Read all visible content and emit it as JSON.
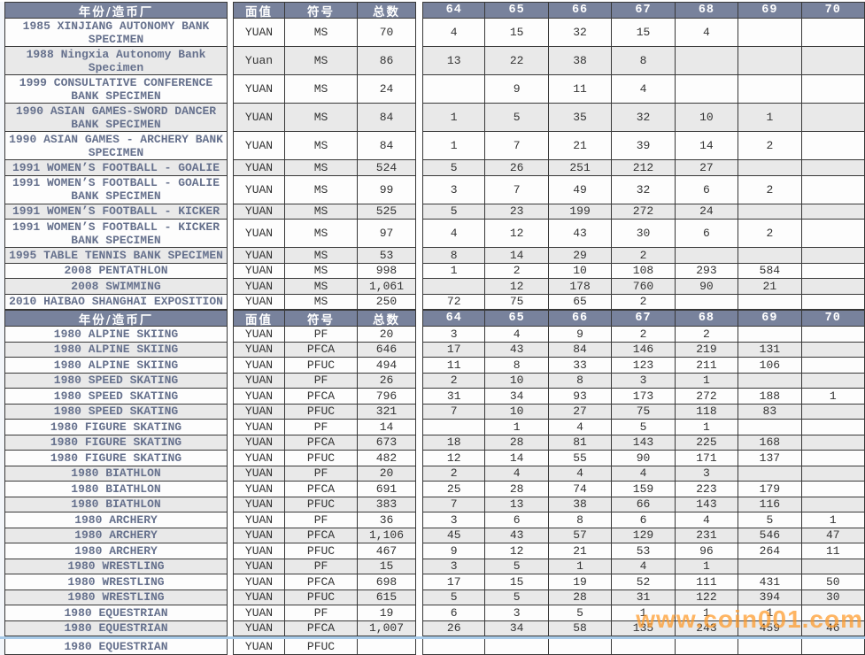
{
  "page": {
    "watermark": "www.coin001.com",
    "watermark_color": "#FF9A28",
    "header_bg": "#78829C",
    "stripe_color": "#E9E9E9",
    "name_text_color": "#66718D",
    "scrollbar_color": "#A8CBE9"
  },
  "columns": {
    "name": "年份/造币厂",
    "denomination": "面值",
    "symbol": "符号",
    "total": "总数",
    "grades": [
      "64",
      "65",
      "66",
      "67",
      "68",
      "69",
      "70"
    ]
  },
  "sections": [
    {
      "rows": [
        {
          "name": "1985 XINJIANG AUTONOMY BANK SPECIMEN",
          "denomination": "YUAN",
          "symbol": "MS",
          "total": "70",
          "grades": [
            "4",
            "15",
            "32",
            "15",
            "4",
            "",
            ""
          ]
        },
        {
          "name": "1988 Ningxia Autonomy Bank Specimen",
          "denomination": "Yuan",
          "symbol": "MS",
          "total": "86",
          "grades": [
            "13",
            "22",
            "38",
            "8",
            "",
            "",
            ""
          ]
        },
        {
          "name": "1999 CONSULTATIVE CONFERENCE BANK SPECIMEN",
          "denomination": "YUAN",
          "symbol": "MS",
          "total": "24",
          "grades": [
            "",
            "9",
            "11",
            "4",
            "",
            "",
            ""
          ]
        },
        {
          "name": "1990 ASIAN GAMES-SWORD DANCER BANK SPECIMEN",
          "denomination": "YUAN",
          "symbol": "MS",
          "total": "84",
          "grades": [
            "1",
            "5",
            "35",
            "32",
            "10",
            "1",
            ""
          ]
        },
        {
          "name": "1990 ASIAN GAMES - ARCHERY BANK SPECIMEN",
          "denomination": "YUAN",
          "symbol": "MS",
          "total": "84",
          "grades": [
            "1",
            "7",
            "21",
            "39",
            "14",
            "2",
            ""
          ]
        },
        {
          "name": "1991 WOMEN’S FOOTBALL - GOALIE",
          "denomination": "YUAN",
          "symbol": "MS",
          "total": "524",
          "grades": [
            "5",
            "26",
            "251",
            "212",
            "27",
            "",
            ""
          ]
        },
        {
          "name": "1991 WOMEN’S FOOTBALL - GOALIE BANK SPECIMEN",
          "denomination": "YUAN",
          "symbol": "MS",
          "total": "99",
          "grades": [
            "3",
            "7",
            "49",
            "32",
            "6",
            "2",
            ""
          ]
        },
        {
          "name": "1991 WOMEN’S FOOTBALL - KICKER",
          "denomination": "YUAN",
          "symbol": "MS",
          "total": "525",
          "grades": [
            "5",
            "23",
            "199",
            "272",
            "24",
            "",
            ""
          ]
        },
        {
          "name": "1991 WOMEN’S FOOTBALL - KICKER BANK SPECIMEN",
          "denomination": "YUAN",
          "symbol": "MS",
          "total": "97",
          "grades": [
            "4",
            "12",
            "43",
            "30",
            "6",
            "2",
            ""
          ]
        },
        {
          "name": "1995 TABLE TENNIS BANK SPECIMEN",
          "denomination": "YUAN",
          "symbol": "MS",
          "total": "53",
          "grades": [
            "8",
            "14",
            "29",
            "2",
            "",
            "",
            ""
          ]
        },
        {
          "name": "2008 PENTATHLON",
          "denomination": "YUAN",
          "symbol": "MS",
          "total": "998",
          "grades": [
            "1",
            "2",
            "10",
            "108",
            "293",
            "584",
            ""
          ]
        },
        {
          "name": "2008 SWIMMING",
          "denomination": "YUAN",
          "symbol": "MS",
          "total": "1,061",
          "grades": [
            "",
            "12",
            "178",
            "760",
            "90",
            "21",
            ""
          ]
        },
        {
          "name": "2010 HAIBAO SHANGHAI EXPOSITION",
          "denomination": "YUAN",
          "symbol": "MS",
          "total": "250",
          "grades": [
            "72",
            "75",
            "65",
            "2",
            "",
            "",
            ""
          ]
        }
      ]
    },
    {
      "rows": [
        {
          "name": "1980 ALPINE SKIING",
          "denomination": "YUAN",
          "symbol": "PF",
          "total": "20",
          "grades": [
            "3",
            "4",
            "9",
            "2",
            "2",
            "",
            ""
          ]
        },
        {
          "name": "1980 ALPINE SKIING",
          "denomination": "YUAN",
          "symbol": "PFCA",
          "total": "646",
          "grades": [
            "17",
            "43",
            "84",
            "146",
            "219",
            "131",
            ""
          ]
        },
        {
          "name": "1980 ALPINE SKIING",
          "denomination": "YUAN",
          "symbol": "PFUC",
          "total": "494",
          "grades": [
            "11",
            "8",
            "33",
            "123",
            "211",
            "106",
            ""
          ]
        },
        {
          "name": "1980 SPEED SKATING",
          "denomination": "YUAN",
          "symbol": "PF",
          "total": "26",
          "grades": [
            "2",
            "10",
            "8",
            "3",
            "1",
            "",
            ""
          ]
        },
        {
          "name": "1980 SPEED SKATING",
          "denomination": "YUAN",
          "symbol": "PFCA",
          "total": "796",
          "grades": [
            "31",
            "34",
            "93",
            "173",
            "272",
            "188",
            "1"
          ]
        },
        {
          "name": "1980 SPEED SKATING",
          "denomination": "YUAN",
          "symbol": "PFUC",
          "total": "321",
          "grades": [
            "7",
            "10",
            "27",
            "75",
            "118",
            "83",
            ""
          ]
        },
        {
          "name": "1980 FIGURE SKATING",
          "denomination": "YUAN",
          "symbol": "PF",
          "total": "14",
          "grades": [
            "",
            "1",
            "4",
            "5",
            "1",
            "",
            ""
          ]
        },
        {
          "name": "1980 FIGURE SKATING",
          "denomination": "YUAN",
          "symbol": "PFCA",
          "total": "673",
          "grades": [
            "18",
            "28",
            "81",
            "143",
            "225",
            "168",
            ""
          ]
        },
        {
          "name": "1980 FIGURE SKATING",
          "denomination": "YUAN",
          "symbol": "PFUC",
          "total": "482",
          "grades": [
            "12",
            "14",
            "55",
            "90",
            "171",
            "137",
            ""
          ]
        },
        {
          "name": "1980 BIATHLON",
          "denomination": "YUAN",
          "symbol": "PF",
          "total": "20",
          "grades": [
            "2",
            "4",
            "4",
            "4",
            "3",
            "",
            ""
          ]
        },
        {
          "name": "1980 BIATHLON",
          "denomination": "YUAN",
          "symbol": "PFCA",
          "total": "691",
          "grades": [
            "25",
            "28",
            "74",
            "159",
            "223",
            "179",
            ""
          ]
        },
        {
          "name": "1980 BIATHLON",
          "denomination": "YUAN",
          "symbol": "PFUC",
          "total": "383",
          "grades": [
            "7",
            "13",
            "38",
            "66",
            "143",
            "116",
            ""
          ]
        },
        {
          "name": "1980 ARCHERY",
          "denomination": "YUAN",
          "symbol": "PF",
          "total": "36",
          "grades": [
            "3",
            "6",
            "8",
            "6",
            "4",
            "5",
            "1"
          ]
        },
        {
          "name": "1980 ARCHERY",
          "denomination": "YUAN",
          "symbol": "PFCA",
          "total": "1,106",
          "grades": [
            "45",
            "43",
            "57",
            "129",
            "231",
            "546",
            "47"
          ]
        },
        {
          "name": "1980 ARCHERY",
          "denomination": "YUAN",
          "symbol": "PFUC",
          "total": "467",
          "grades": [
            "9",
            "12",
            "21",
            "53",
            "96",
            "264",
            "11"
          ]
        },
        {
          "name": "1980 WRESTLING",
          "denomination": "YUAN",
          "symbol": "PF",
          "total": "15",
          "grades": [
            "3",
            "5",
            "1",
            "4",
            "1",
            "",
            ""
          ]
        },
        {
          "name": "1980 WRESTLING",
          "denomination": "YUAN",
          "symbol": "PFCA",
          "total": "698",
          "grades": [
            "17",
            "15",
            "19",
            "52",
            "111",
            "431",
            "50"
          ]
        },
        {
          "name": "1980 WRESTLING",
          "denomination": "YUAN",
          "symbol": "PFUC",
          "total": "615",
          "grades": [
            "5",
            "5",
            "28",
            "31",
            "122",
            "394",
            "30"
          ]
        },
        {
          "name": "1980 EQUESTRIAN",
          "denomination": "YUAN",
          "symbol": "PF",
          "total": "19",
          "grades": [
            "6",
            "3",
            "5",
            "1",
            "1",
            "1",
            ""
          ]
        },
        {
          "name": "1980 EQUESTRIAN",
          "denomination": "YUAN",
          "symbol": "PFCA",
          "total": "1,007",
          "grades": [
            "26",
            "34",
            "58",
            "135",
            "243",
            "459",
            "46"
          ]
        }
      ]
    }
  ],
  "partial_row": {
    "name": "1980 EQUESTRIAN",
    "denomination": "YUAN",
    "symbol": "PFUC",
    "total": "",
    "grades": [
      "",
      "",
      "",
      "",
      "",
      "",
      ""
    ]
  }
}
